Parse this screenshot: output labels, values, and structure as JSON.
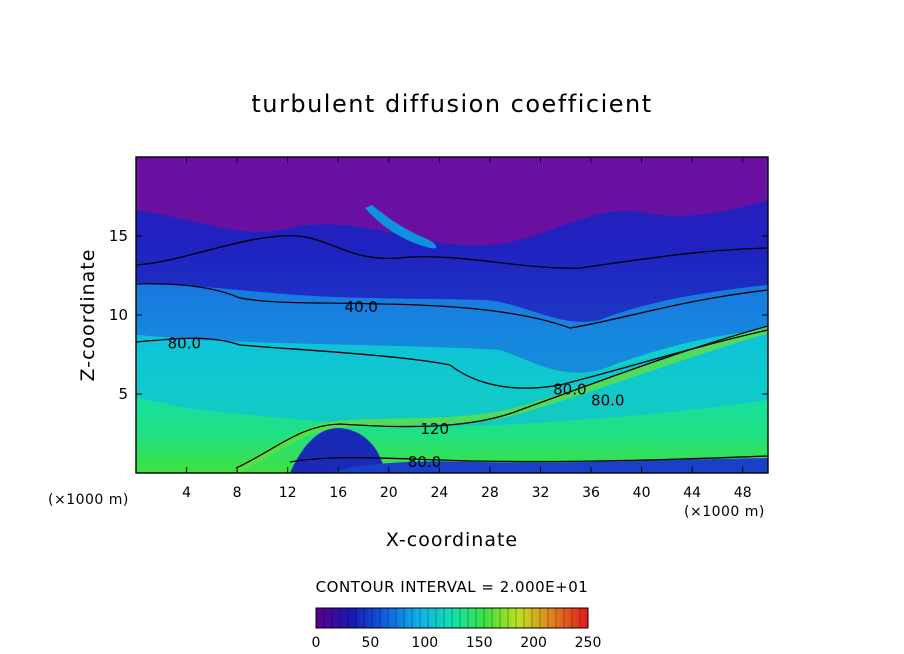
{
  "chart_data": {
    "type": "heatmap",
    "title": "turbulent diffusion coefficient",
    "xlabel": "X-coordinate",
    "ylabel": "Z-coordinate",
    "x_unit_left": "(×1000 m)",
    "x_unit_right": "(×1000 m)",
    "xlim": [
      0,
      50
    ],
    "ylim": [
      0,
      20
    ],
    "xticks": [
      4,
      8,
      12,
      16,
      20,
      24,
      28,
      32,
      36,
      40,
      44,
      48
    ],
    "yticks": [
      5,
      10,
      15
    ],
    "contour_interval_text": "CONTOUR INTERVAL = 2.000E+01",
    "colorbar": {
      "range": [
        0,
        250
      ],
      "ticks": [
        0,
        50,
        100,
        150,
        200,
        250
      ],
      "colors": [
        "#5a0090",
        "#1818b0",
        "#1060e0",
        "#10b0e8",
        "#10e0b0",
        "#40e040",
        "#c0e020",
        "#e08020",
        "#e02020"
      ]
    },
    "contour_labels": [
      {
        "text": "40.0",
        "x": 16.5,
        "z": 10.5
      },
      {
        "text": "80.0",
        "x": 2.5,
        "z": 8.2
      },
      {
        "text": "80.0",
        "x": 33.0,
        "z": 5.3
      },
      {
        "text": "80.0",
        "x": 36.0,
        "z": 4.6
      },
      {
        "text": "120",
        "x": 22.5,
        "z": 2.8
      },
      {
        "text": "80.0",
        "x": 21.5,
        "z": 0.7
      }
    ]
  }
}
